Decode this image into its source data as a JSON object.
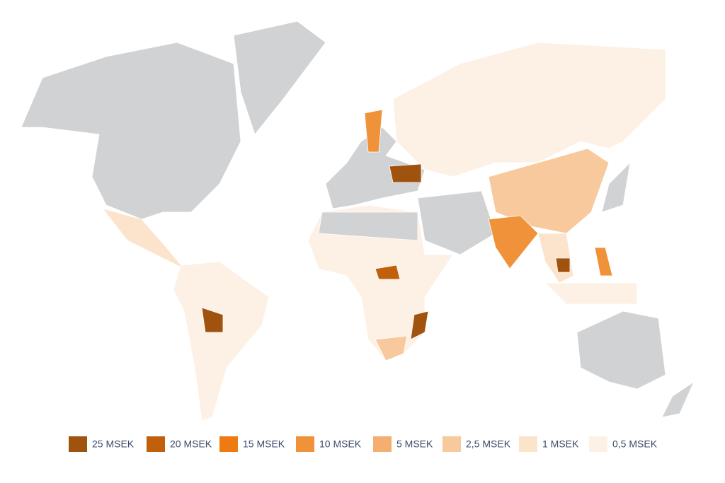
{
  "legend": [
    {
      "label": "25 MSEK",
      "color": "#a0520f"
    },
    {
      "label": "20 MSEK",
      "color": "#c1600b"
    },
    {
      "label": "15 MSEK",
      "color": "#ef7a12"
    },
    {
      "label": "10 MSEK",
      "color": "#f0923a"
    },
    {
      "label": "5 MSEK",
      "color": "#f4ae70"
    },
    {
      "label": "2,5 MSEK",
      "color": "#f7c99d"
    },
    {
      "label": "1 MSEK",
      "color": "#fbe3cc"
    },
    {
      "label": "0,5 MSEK",
      "color": "#fdf1e6"
    }
  ]
}
